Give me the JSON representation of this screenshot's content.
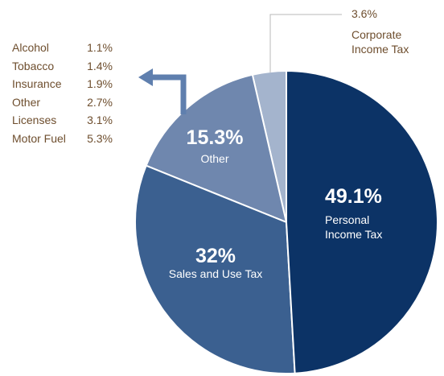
{
  "chart_data": {
    "type": "pie",
    "categories": [
      "Personal Income Tax",
      "Sales and Use Tax",
      "Other",
      "Corporate Income Tax"
    ],
    "values": [
      49.1,
      32,
      15.3,
      3.6
    ],
    "value_labels": [
      "49.1%",
      "32%",
      "15.3%",
      "3.6%"
    ],
    "colors": [
      "#0c3366",
      "#3b6090",
      "#6f87ae",
      "#a4b4cd"
    ],
    "breakdown": {
      "categories": [
        "Alcohol",
        "Tobacco",
        "Insurance",
        "Other",
        "Licenses",
        "Motor Fuel"
      ],
      "values": [
        1.1,
        1.4,
        1.9,
        2.7,
        3.1,
        5.3
      ],
      "value_labels": [
        "1.1%",
        "1.4%",
        "1.9%",
        "2.7%",
        "3.1%",
        "5.3%"
      ]
    }
  }
}
